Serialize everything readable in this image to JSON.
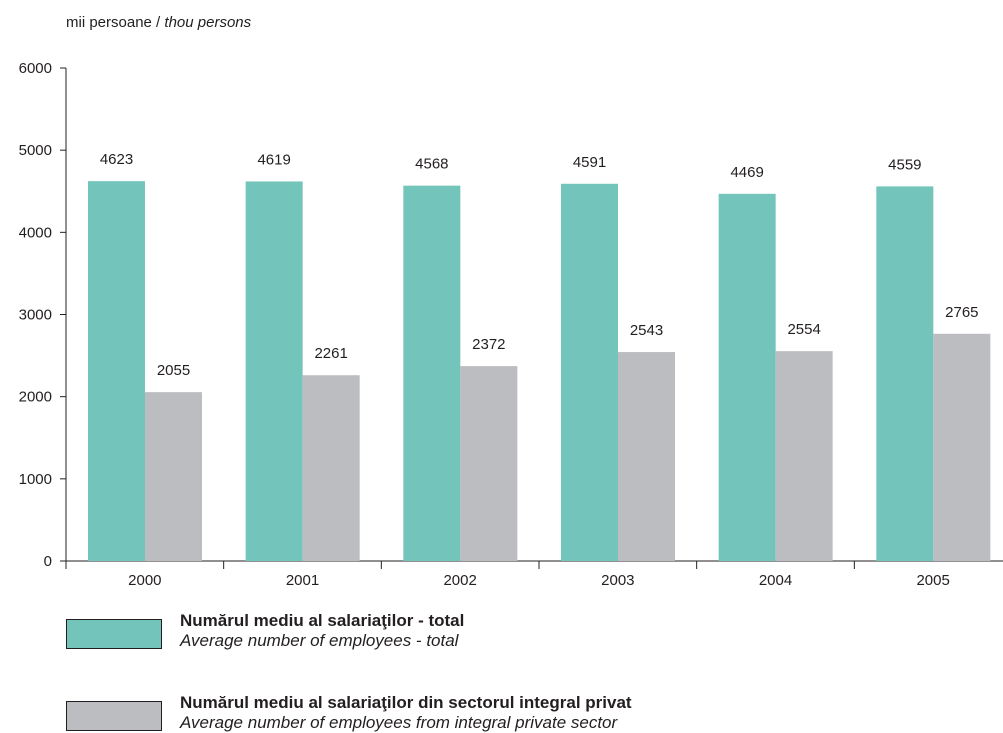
{
  "unit_label": {
    "ro": "mii persoane",
    "sep": " / ",
    "en": "thou persons"
  },
  "chart_data": {
    "type": "bar",
    "categories": [
      "2000",
      "2001",
      "2002",
      "2003",
      "2004",
      "2005"
    ],
    "series": [
      {
        "name": "Numărul mediu al salariaţilor - total",
        "values": [
          4623,
          4619,
          4568,
          4591,
          4469,
          4559
        ],
        "color": "#73c5bb"
      },
      {
        "name": "Numărul mediu al salariaţilor din sectorul integral privat",
        "values": [
          2055,
          2261,
          2372,
          2543,
          2554,
          2765
        ],
        "color": "#bcbdc0"
      }
    ],
    "ylim": [
      0,
      6000
    ],
    "yticks": [
      0,
      1000,
      2000,
      3000,
      4000,
      5000,
      6000
    ],
    "grid": false,
    "legend_placement": "bottom"
  },
  "legend": [
    {
      "ro": "Numărul mediu al salariaţilor - total",
      "en": "Average number of employees - total",
      "color": "#73c5bb"
    },
    {
      "ro": "Numărul mediu al salariaţilor din sectorul integral privat",
      "en": "Average number of employees from integral private sector",
      "color": "#bcbdc0"
    }
  ]
}
